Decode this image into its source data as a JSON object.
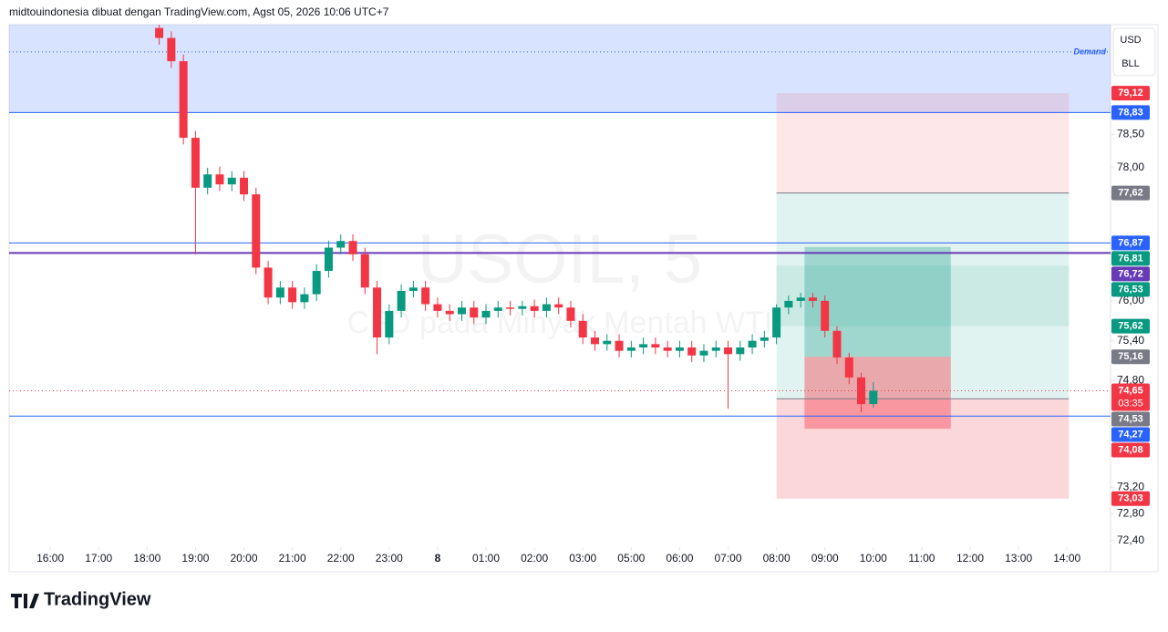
{
  "header": "midtouindonesia dibuat dengan TradingView.com, Agst 05, 2026 10:06 UTC+7",
  "logo": "TradingView",
  "buttons": [
    "USD",
    "BLL"
  ],
  "chart_data": {
    "type": "candlestick",
    "watermark": {
      "symbol": "USOIL, 5",
      "description": "CFD pada Minyak Mentah WTI"
    },
    "ylim": [
      72.3,
      80.15
    ],
    "yticks": [
      {
        "value": 78.5,
        "label": "78,50"
      },
      {
        "value": 78,
        "label": "78,00"
      },
      {
        "value": 76,
        "label": "76,00"
      },
      {
        "value": 75.4,
        "label": "75,40"
      },
      {
        "value": 74.8,
        "label": "74,80"
      },
      {
        "value": 73.2,
        "label": "73,20"
      },
      {
        "value": 72.8,
        "label": "72,80"
      },
      {
        "value": 72.4,
        "label": "72,40"
      }
    ],
    "xlim": [
      -0.85,
      21.9
    ],
    "xticks": [
      {
        "value": 0,
        "label": "16:00"
      },
      {
        "value": 1,
        "label": "17:00"
      },
      {
        "value": 2,
        "label": "18:00"
      },
      {
        "value": 3,
        "label": "19:00"
      },
      {
        "value": 4,
        "label": "20:00"
      },
      {
        "value": 5,
        "label": "21:00"
      },
      {
        "value": 6,
        "label": "22:00"
      },
      {
        "value": 7,
        "label": "23:00"
      },
      8,
      {
        "value": 9,
        "label": "01:00"
      },
      {
        "value": 10,
        "label": "02:00"
      },
      {
        "value": 11,
        "label": "03:00"
      },
      {
        "value": 12,
        "label": "05:00"
      },
      {
        "value": 13,
        "label": "06:00"
      },
      {
        "value": 14,
        "label": "07:00"
      },
      {
        "value": 15,
        "label": "08:00"
      },
      {
        "value": 16,
        "label": "09:00"
      },
      {
        "value": 17,
        "label": "10:00"
      },
      {
        "value": 18,
        "label": "11:00"
      },
      {
        "value": 19,
        "label": "12:00"
      },
      {
        "value": 20,
        "label": "13:00"
      },
      {
        "value": 21,
        "label": "14:00"
      }
    ],
    "up_color": "#089981",
    "down_color": "#f23645",
    "candles": {
      "x": [
        2.25,
        2.5,
        2.75,
        3.0,
        3.25,
        3.5,
        3.75,
        4.0,
        4.25,
        4.5,
        4.75,
        5.0,
        5.25,
        5.5,
        5.75,
        6.0,
        6.25,
        6.5,
        6.75,
        7.0,
        7.25,
        7.5,
        7.75,
        8.0,
        8.25,
        8.5,
        8.75,
        9.0,
        9.25,
        9.5,
        9.75,
        10.0,
        10.25,
        10.5,
        10.75,
        11.0,
        11.25,
        11.5,
        11.75,
        12.0,
        12.25,
        12.5,
        12.75,
        13.0,
        13.25,
        13.5,
        13.75,
        14.0,
        14.25,
        14.5,
        14.75,
        15.0,
        15.25,
        15.5,
        15.75,
        16.0,
        16.25,
        16.5,
        16.75,
        17.0
      ],
      "open": [
        80.1,
        79.95,
        79.6,
        78.45,
        77.7,
        77.9,
        77.75,
        77.85,
        77.6,
        76.5,
        76.05,
        76.2,
        75.98,
        76.1,
        76.45,
        76.8,
        76.9,
        76.7,
        76.2,
        75.45,
        75.85,
        76.15,
        76.2,
        75.95,
        75.85,
        75.8,
        75.9,
        75.75,
        75.85,
        75.9,
        75.88,
        75.92,
        75.85,
        75.95,
        75.9,
        75.7,
        75.45,
        75.35,
        75.4,
        75.25,
        75.3,
        75.35,
        75.3,
        75.25,
        75.3,
        75.18,
        75.25,
        75.3,
        75.2,
        75.3,
        75.4,
        75.45,
        75.9,
        76.0,
        76.05,
        76.0,
        75.55,
        75.15,
        74.85,
        74.45
      ],
      "high": [
        80.15,
        80.05,
        79.7,
        78.55,
        78.0,
        78.02,
        77.95,
        77.95,
        77.7,
        76.6,
        76.3,
        76.3,
        76.2,
        76.55,
        76.9,
        77.0,
        77.0,
        76.8,
        76.3,
        75.95,
        76.25,
        76.3,
        76.3,
        76.05,
        75.95,
        76.0,
        76.0,
        75.95,
        76.0,
        76.0,
        76.0,
        76.02,
        76.05,
        76.05,
        76.0,
        75.8,
        75.55,
        75.5,
        75.5,
        75.4,
        75.45,
        75.45,
        75.4,
        75.4,
        75.4,
        75.35,
        75.4,
        75.4,
        75.4,
        75.5,
        75.55,
        75.95,
        76.08,
        76.12,
        76.12,
        76.08,
        75.62,
        75.22,
        74.92,
        74.78
      ],
      "low": [
        79.85,
        79.5,
        78.35,
        76.7,
        77.6,
        77.65,
        77.65,
        77.5,
        76.4,
        75.95,
        75.95,
        75.88,
        75.88,
        76.0,
        76.35,
        76.7,
        76.6,
        76.1,
        75.2,
        75.35,
        75.75,
        76.05,
        75.85,
        75.75,
        75.7,
        75.7,
        75.65,
        75.65,
        75.75,
        75.78,
        75.78,
        75.75,
        75.75,
        75.8,
        75.6,
        75.35,
        75.25,
        75.25,
        75.15,
        75.15,
        75.2,
        75.2,
        75.15,
        75.15,
        75.08,
        75.08,
        75.15,
        74.38,
        75.1,
        75.2,
        75.3,
        75.35,
        75.8,
        75.9,
        75.9,
        75.45,
        75.05,
        74.75,
        74.33,
        74.4
      ],
      "close": [
        79.95,
        79.6,
        78.45,
        77.7,
        77.9,
        77.75,
        77.85,
        77.6,
        76.5,
        76.05,
        76.2,
        75.98,
        76.1,
        76.45,
        76.8,
        76.9,
        76.7,
        76.2,
        75.45,
        75.85,
        76.15,
        76.2,
        75.95,
        75.85,
        75.8,
        75.9,
        75.75,
        75.85,
        75.9,
        75.88,
        75.92,
        75.85,
        75.95,
        75.9,
        75.7,
        75.45,
        75.35,
        75.4,
        75.25,
        75.3,
        75.35,
        75.3,
        75.25,
        75.3,
        75.18,
        75.25,
        75.3,
        75.2,
        75.3,
        75.4,
        75.45,
        75.9,
        76.0,
        76.05,
        76.0,
        75.55,
        75.15,
        74.85,
        74.45,
        74.65
      ]
    },
    "demand_zone": {
      "label": "Demand",
      "bottom": 78.83,
      "level": 79.74,
      "color": "#2962ff"
    },
    "boxes": [
      {
        "x": [
          15,
          21.04
        ],
        "top": 79.12,
        "bottom": 77.62,
        "color": "#f23645",
        "opacity": 0.12
      },
      {
        "x": [
          15,
          21.04
        ],
        "top": 77.62,
        "bottom": 74.53,
        "color": "#089981",
        "opacity": 0.12
      },
      {
        "x": [
          15,
          21.04
        ],
        "top": 76.53,
        "bottom": 75.62,
        "color": "#089981",
        "opacity": 0.1
      },
      {
        "x": [
          15,
          21.04
        ],
        "top": 74.53,
        "bottom": 73.03,
        "color": "#f23645",
        "opacity": 0.2
      },
      {
        "x": [
          15.58,
          18.6
        ],
        "top": 76.81,
        "bottom": 75.16,
        "color": "#089981",
        "opacity": 0.3
      },
      {
        "x": [
          15.58,
          18.6
        ],
        "top": 75.16,
        "bottom": 74.08,
        "color": "#f23645",
        "opacity": 0.4
      }
    ],
    "price_labels": [
      {
        "value": 79.12,
        "label": "79,12",
        "color": "#f23645"
      },
      {
        "value": 78.83,
        "label": "78,83",
        "color": "#2962ff",
        "line": "solid"
      },
      {
        "value": 77.62,
        "label": "77,62",
        "color": "#787b86",
        "line": "box"
      },
      {
        "value": 76.87,
        "label": "76,87",
        "color": "#2962ff",
        "line": "solid"
      },
      {
        "value": 76.81,
        "label": "76,81",
        "color": "#089981"
      },
      {
        "value": 76.72,
        "label": "76,72",
        "color": "#673ab7",
        "line": "thick"
      },
      {
        "value": 76.53,
        "label": "76,53",
        "color": "#089981"
      },
      {
        "value": 75.62,
        "label": "75,62",
        "color": "#089981"
      },
      {
        "value": 75.16,
        "label": "75,16",
        "color": "#787b86"
      },
      {
        "value": 74.65,
        "label": "74,65",
        "color": "#f23645",
        "line": "dotted",
        "countdown": "03:35"
      },
      {
        "value": 74.53,
        "label": "74,53",
        "color": "#787b86",
        "line": "box"
      },
      {
        "value": 74.27,
        "label": "74,27",
        "color": "#2962ff",
        "line": "solid"
      },
      {
        "value": 74.08,
        "label": "74,08",
        "color": "#f23645"
      },
      {
        "value": 73.03,
        "label": "73,03",
        "color": "#f23645"
      }
    ]
  }
}
